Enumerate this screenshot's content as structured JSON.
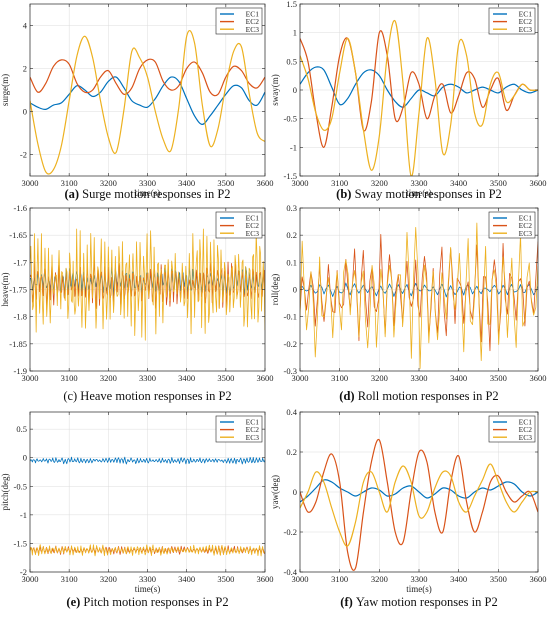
{
  "figure": {
    "line_colors": {
      "EC1": "#0072bd",
      "EC2": "#d95319",
      "EC3": "#edb120"
    }
  },
  "chart_data": [
    {
      "type": "line",
      "caption": {
        "letter": "(a)",
        "text": "Surge motion responses in P2"
      },
      "xlabel": "time(s)",
      "ylabel": "surge(m)",
      "xlim": [
        3000,
        3600
      ],
      "ylim": [
        -3,
        5
      ],
      "xticks": [
        3000,
        3100,
        3200,
        3300,
        3400,
        3500,
        3600
      ],
      "yticks": [
        -2,
        0,
        2,
        4
      ],
      "xtick_labels": [
        "3000",
        "3100",
        "3200",
        "3300",
        "3400",
        "3500",
        "3600"
      ],
      "ytick_labels": [
        "-2",
        "0",
        "2",
        "4"
      ],
      "grid": true,
      "legend": "top-right",
      "series": [
        {
          "name": "EC1",
          "color": "#0072bd",
          "x": [
            3000,
            3020,
            3040,
            3060,
            3080,
            3100,
            3120,
            3140,
            3160,
            3180,
            3200,
            3220,
            3240,
            3260,
            3280,
            3300,
            3320,
            3340,
            3360,
            3380,
            3400,
            3420,
            3440,
            3460,
            3480,
            3500,
            3520,
            3540,
            3560,
            3580,
            3600
          ],
          "y": [
            0.4,
            0.2,
            0.1,
            0.3,
            0.4,
            0.8,
            1.2,
            1.0,
            0.7,
            0.9,
            1.4,
            1.6,
            1.1,
            0.5,
            0.3,
            0.2,
            0.6,
            1.2,
            1.6,
            1.4,
            0.6,
            -0.2,
            -0.6,
            -0.2,
            0.3,
            0.8,
            1.2,
            1.1,
            0.5,
            0.3,
            0.9
          ]
        },
        {
          "name": "EC2",
          "color": "#d95319",
          "x": [
            3000,
            3020,
            3040,
            3060,
            3080,
            3100,
            3120,
            3140,
            3160,
            3180,
            3200,
            3220,
            3240,
            3260,
            3280,
            3300,
            3320,
            3340,
            3360,
            3380,
            3400,
            3420,
            3440,
            3460,
            3480,
            3500,
            3520,
            3540,
            3560,
            3580,
            3600
          ],
          "y": [
            1.6,
            0.9,
            1.3,
            2.1,
            2.4,
            2.2,
            1.3,
            0.9,
            1.0,
            1.6,
            1.9,
            1.3,
            0.8,
            1.1,
            2.0,
            2.4,
            2.3,
            1.4,
            1.0,
            1.2,
            2.0,
            2.3,
            1.8,
            0.9,
            0.8,
            1.6,
            2.1,
            1.9,
            1.3,
            1.1,
            1.6
          ]
        },
        {
          "name": "EC3",
          "color": "#edb120",
          "x": [
            3000,
            3020,
            3040,
            3060,
            3080,
            3100,
            3120,
            3140,
            3160,
            3180,
            3200,
            3220,
            3240,
            3260,
            3280,
            3300,
            3320,
            3340,
            3360,
            3380,
            3400,
            3420,
            3440,
            3460,
            3480,
            3500,
            3520,
            3540,
            3560,
            3580,
            3600
          ],
          "y": [
            0.5,
            -1.5,
            -2.8,
            -2.7,
            -1.6,
            0.5,
            2.6,
            3.5,
            2.5,
            0.5,
            -1.2,
            -1.9,
            0.1,
            2.8,
            2.5,
            1.6,
            0.0,
            -1.3,
            -1.8,
            0.2,
            3.5,
            3.2,
            0.3,
            -1.6,
            -0.8,
            1.2,
            2.8,
            3.0,
            0.8,
            -1.0,
            -1.4
          ]
        }
      ]
    },
    {
      "type": "line",
      "caption": {
        "letter": "(b)",
        "text": "Sway motion responses in P2"
      },
      "xlabel": "time(s)",
      "ylabel": "sway(m)",
      "xlim": [
        3000,
        3600
      ],
      "ylim": [
        -1.5,
        1.5
      ],
      "xticks": [
        3000,
        3100,
        3200,
        3300,
        3400,
        3500,
        3600
      ],
      "yticks": [
        -1.5,
        -1,
        -0.5,
        0,
        0.5,
        1,
        1.5
      ],
      "xtick_labels": [
        "3000",
        "3100",
        "3200",
        "3300",
        "3400",
        "3500",
        "3600"
      ],
      "ytick_labels": [
        "-1.5",
        "-1",
        "-0.5",
        "0",
        "0.5",
        "1",
        "1.5"
      ],
      "grid": true,
      "legend": "top-right",
      "series": [
        {
          "name": "EC1",
          "color": "#0072bd",
          "x": [
            3000,
            3020,
            3040,
            3060,
            3080,
            3100,
            3120,
            3140,
            3160,
            3180,
            3200,
            3220,
            3240,
            3260,
            3280,
            3300,
            3320,
            3340,
            3360,
            3380,
            3400,
            3420,
            3440,
            3460,
            3480,
            3500,
            3520,
            3540,
            3560,
            3580,
            3600
          ],
          "y": [
            0.1,
            0.3,
            0.4,
            0.35,
            0.05,
            -0.25,
            -0.15,
            0.1,
            0.3,
            0.35,
            0.25,
            0.0,
            -0.2,
            -0.3,
            -0.15,
            0.0,
            -0.05,
            -0.1,
            0.05,
            0.1,
            0.05,
            -0.05,
            0.0,
            0.05,
            0.0,
            -0.05,
            0.05,
            0.1,
            0.0,
            -0.05,
            0.0
          ]
        },
        {
          "name": "EC2",
          "color": "#d95319",
          "x": [
            3000,
            3020,
            3040,
            3060,
            3080,
            3100,
            3120,
            3140,
            3160,
            3180,
            3200,
            3220,
            3240,
            3260,
            3280,
            3300,
            3320,
            3340,
            3360,
            3380,
            3400,
            3420,
            3440,
            3460,
            3480,
            3500,
            3520,
            3540,
            3560,
            3580,
            3600
          ],
          "y": [
            0.9,
            0.5,
            -0.4,
            -1.0,
            -0.3,
            0.6,
            0.9,
            0.3,
            -0.7,
            -0.2,
            1.0,
            0.6,
            -0.5,
            -0.3,
            0.3,
            0.1,
            -0.5,
            -0.1,
            0.1,
            -0.4,
            -0.1,
            0.3,
            0.2,
            -0.3,
            0.0,
            0.2,
            -0.35,
            -0.1,
            0.1,
            0.0,
            0.0
          ]
        },
        {
          "name": "EC3",
          "color": "#edb120",
          "x": [
            3000,
            3020,
            3040,
            3060,
            3080,
            3100,
            3120,
            3140,
            3160,
            3180,
            3200,
            3220,
            3240,
            3260,
            3280,
            3300,
            3320,
            3340,
            3360,
            3380,
            3400,
            3420,
            3440,
            3460,
            3480,
            3500,
            3520,
            3540,
            3560,
            3580,
            3600
          ],
          "y": [
            0.6,
            0.2,
            -0.4,
            -0.7,
            -0.5,
            0.3,
            0.9,
            0.3,
            -0.7,
            -1.4,
            -0.8,
            0.6,
            1.2,
            0.1,
            -1.5,
            -0.4,
            0.9,
            0.2,
            -1.1,
            -0.6,
            0.8,
            0.6,
            -0.4,
            -0.6,
            0.1,
            0.3,
            -0.2,
            -0.1,
            0.1,
            0.0,
            0.0
          ]
        }
      ]
    },
    {
      "type": "line",
      "caption": {
        "letter": "",
        "text": "(c) Heave motion responses in P2"
      },
      "xlabel": "",
      "ylabel": "heave(m)",
      "xlim": [
        3000,
        3600
      ],
      "ylim": [
        -1.9,
        -1.6
      ],
      "xticks": [
        3000,
        3100,
        3200,
        3300,
        3400,
        3500,
        3600
      ],
      "yticks": [
        -1.9,
        -1.85,
        -1.8,
        -1.75,
        -1.7,
        -1.65,
        -1.6
      ],
      "xtick_labels": [
        "3000",
        "3100",
        "3200",
        "3300",
        "3400",
        "3500",
        "3600"
      ],
      "ytick_labels": [
        "-1.9",
        "-1.85",
        "-1.8",
        "-1.75",
        "-1.7",
        "-1.65",
        "-1.6"
      ],
      "grid": true,
      "legend": "top-right",
      "series": [
        {
          "name": "EC1",
          "color": "#0072bd",
          "pattern": "oscillation",
          "x_start": 3000,
          "x_end": 3600,
          "mean": -1.735,
          "amplitude": 0.025,
          "period": 9
        },
        {
          "name": "EC2",
          "color": "#d95319",
          "pattern": "oscillation",
          "x_start": 3000,
          "x_end": 3600,
          "mean": -1.74,
          "amplitude": 0.04,
          "period": 9
        },
        {
          "name": "EC3",
          "color": "#edb120",
          "pattern": "oscillation",
          "x_start": 3000,
          "x_end": 3600,
          "mean": -1.74,
          "amplitude": 0.09,
          "period": 9
        }
      ]
    },
    {
      "type": "line",
      "caption": {
        "letter": "(d)",
        "text": "Roll motion responses in P2"
      },
      "xlabel": "",
      "ylabel": "roll(deg)",
      "xlim": [
        3000,
        3600
      ],
      "ylim": [
        -0.3,
        0.3
      ],
      "xticks": [
        3000,
        3100,
        3200,
        3300,
        3400,
        3500,
        3600
      ],
      "yticks": [
        -0.3,
        -0.2,
        -0.1,
        0,
        0.1,
        0.2,
        0.3
      ],
      "xtick_labels": [
        "3000",
        "3100",
        "3200",
        "3300",
        "3400",
        "3500",
        "3600"
      ],
      "ytick_labels": [
        "-0.3",
        "-0.2",
        "-0.1",
        "0",
        "0.1",
        "0.2",
        "0.3"
      ],
      "grid": true,
      "legend": "top-right",
      "series": [
        {
          "name": "EC1",
          "color": "#0072bd",
          "pattern": "oscillation",
          "x_start": 3000,
          "x_end": 3600,
          "mean": 0.0,
          "amplitude": 0.025,
          "period": 22
        },
        {
          "name": "EC2",
          "color": "#d95319",
          "pattern": "oscillation",
          "x_start": 3000,
          "x_end": 3600,
          "mean": -0.02,
          "amplitude": 0.2,
          "period": 22
        },
        {
          "name": "EC3",
          "color": "#edb120",
          "pattern": "oscillation",
          "x_start": 3000,
          "x_end": 3600,
          "mean": -0.02,
          "amplitude": 0.23,
          "period": 22
        }
      ]
    },
    {
      "type": "line",
      "caption": {
        "letter": "(e)",
        "text": "Pitch motion responses in P2"
      },
      "xlabel": "time(s)",
      "ylabel": "pitch(deg)",
      "xlim": [
        3000,
        3600
      ],
      "ylim": [
        -2,
        0.8
      ],
      "xticks": [
        3000,
        3100,
        3200,
        3300,
        3400,
        3500,
        3600
      ],
      "yticks": [
        -2,
        -1.5,
        -1,
        -0.5,
        0,
        0.5
      ],
      "xtick_labels": [
        "3000",
        "3100",
        "3200",
        "3300",
        "3400",
        "3500",
        "3600"
      ],
      "ytick_labels": [
        "-2",
        "-1.5",
        "-1",
        "-0.5",
        "0",
        "0.5"
      ],
      "grid": true,
      "legend": "top-right",
      "series": [
        {
          "name": "EC1",
          "color": "#0072bd",
          "pattern": "oscillation",
          "x_start": 3000,
          "x_end": 3600,
          "mean": -0.05,
          "amplitude": 0.05,
          "period": 8
        },
        {
          "name": "EC2",
          "color": "#d95319",
          "pattern": "oscillation",
          "x_start": 3000,
          "x_end": 3600,
          "mean": -1.62,
          "amplitude": 0.07,
          "period": 8
        },
        {
          "name": "EC3",
          "color": "#edb120",
          "pattern": "oscillation",
          "x_start": 3000,
          "x_end": 3600,
          "mean": -1.62,
          "amplitude": 0.09,
          "period": 8
        }
      ]
    },
    {
      "type": "line",
      "caption": {
        "letter": "(f)",
        "text": "Yaw motion responses in P2"
      },
      "xlabel": "time(s)",
      "ylabel": "yaw(deg)",
      "xlim": [
        3000,
        3600
      ],
      "ylim": [
        -0.4,
        0.4
      ],
      "xticks": [
        3000,
        3100,
        3200,
        3300,
        3400,
        3500,
        3600
      ],
      "yticks": [
        -0.4,
        -0.2,
        0,
        0.2,
        0.4
      ],
      "xtick_labels": [
        "3000",
        "3100",
        "3200",
        "3300",
        "3400",
        "3500",
        "3600"
      ],
      "ytick_labels": [
        "-0.4",
        "-0.2",
        "0",
        "0.2",
        "0.4"
      ],
      "grid": true,
      "legend": "top-right",
      "series": [
        {
          "name": "EC1",
          "color": "#0072bd",
          "x": [
            3000,
            3020,
            3040,
            3060,
            3080,
            3100,
            3120,
            3140,
            3160,
            3180,
            3200,
            3220,
            3240,
            3260,
            3280,
            3300,
            3320,
            3340,
            3360,
            3380,
            3400,
            3420,
            3440,
            3460,
            3480,
            3500,
            3520,
            3540,
            3560,
            3580,
            3600
          ],
          "y": [
            -0.05,
            -0.02,
            0.02,
            0.06,
            0.05,
            0.02,
            0.0,
            -0.02,
            0.0,
            0.02,
            0.01,
            -0.02,
            -0.01,
            0.02,
            0.03,
            0.0,
            -0.03,
            -0.01,
            0.02,
            0.01,
            -0.02,
            -0.03,
            0.0,
            0.02,
            0.01,
            0.03,
            0.05,
            0.04,
            0.0,
            -0.02,
            0.0
          ]
        },
        {
          "name": "EC2",
          "color": "#d95319",
          "x": [
            3000,
            3020,
            3040,
            3060,
            3080,
            3100,
            3120,
            3140,
            3160,
            3180,
            3200,
            3220,
            3240,
            3260,
            3280,
            3300,
            3320,
            3340,
            3360,
            3380,
            3400,
            3420,
            3440,
            3460,
            3480,
            3500,
            3520,
            3540,
            3560,
            3580,
            3600
          ],
          "y": [
            0.0,
            -0.1,
            -0.05,
            0.1,
            0.19,
            0.05,
            -0.3,
            -0.38,
            -0.1,
            0.15,
            0.26,
            0.05,
            -0.2,
            -0.25,
            0.0,
            0.2,
            0.15,
            -0.1,
            -0.2,
            0.05,
            0.18,
            -0.05,
            -0.2,
            -0.1,
            0.05,
            0.08,
            0.0,
            -0.05,
            -0.02,
            0.0,
            -0.1
          ]
        },
        {
          "name": "EC3",
          "color": "#edb120",
          "x": [
            3000,
            3020,
            3040,
            3060,
            3080,
            3100,
            3120,
            3140,
            3160,
            3180,
            3200,
            3220,
            3240,
            3260,
            3280,
            3300,
            3320,
            3340,
            3360,
            3380,
            3400,
            3420,
            3440,
            3460,
            3480,
            3500,
            3520,
            3540,
            3560,
            3580,
            3600
          ],
          "y": [
            -0.08,
            0.0,
            0.1,
            0.05,
            -0.08,
            -0.2,
            -0.27,
            -0.15,
            0.05,
            0.1,
            0.0,
            -0.1,
            0.05,
            0.13,
            0.05,
            -0.12,
            -0.1,
            0.02,
            0.1,
            0.08,
            -0.05,
            -0.1,
            -0.02,
            0.06,
            0.14,
            0.05,
            -0.05,
            -0.1,
            -0.05,
            0.0,
            0.0
          ]
        }
      ]
    }
  ]
}
